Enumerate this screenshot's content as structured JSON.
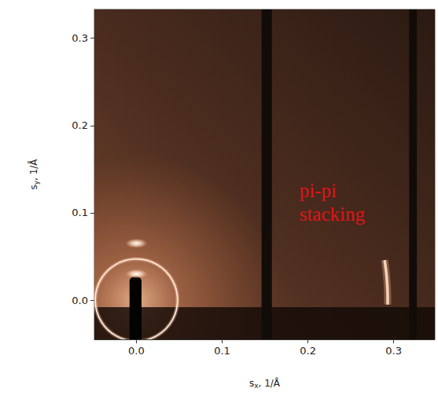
{
  "chart_data": {
    "type": "image",
    "x_label": "sx, 1/Å",
    "y_label": "sy, 1/Å",
    "xlim": [
      -0.049,
      0.348
    ],
    "ylim": [
      -0.045,
      0.333
    ],
    "xticks": [
      {
        "value": 0,
        "label": "0.0"
      },
      {
        "value": 0.1,
        "label": "0.1"
      },
      {
        "value": 0.2,
        "label": "0.2"
      },
      {
        "value": 0.3,
        "label": "0.3"
      }
    ],
    "yticks": [
      {
        "value": 0,
        "label": "0.0"
      },
      {
        "value": 0.1,
        "label": "0.1"
      },
      {
        "value": 0.2,
        "label": "0.2"
      },
      {
        "value": 0.3,
        "label": "0.3"
      }
    ],
    "grid": false,
    "annotations": [
      {
        "text": "pi-pi\nstacking",
        "x": 0.19,
        "y": 0.139,
        "color": "#e01418"
      }
    ],
    "features": {
      "scattering_glow": {
        "x": 0.0,
        "y": 0.0,
        "radius": 0.17
      },
      "rings": [
        {
          "x": 0.0,
          "y": 0.0,
          "radius": 0.048
        }
      ],
      "arcs": [
        {
          "x": 0.0,
          "y": 0.0,
          "radius": 0.293,
          "angles": [
            -1,
            9
          ]
        }
      ],
      "peaks": [
        {
          "x": 0.0,
          "y": 0.03
        },
        {
          "x": 0.0,
          "y": 0.065
        }
      ],
      "detector_gaps": [
        [
          0.146,
          0.158
        ],
        [
          0.318,
          0.327
        ]
      ],
      "horizon": -0.008,
      "beamstop": {
        "x": [
          -0.008,
          0.006
        ],
        "top": 0.027
      }
    }
  }
}
